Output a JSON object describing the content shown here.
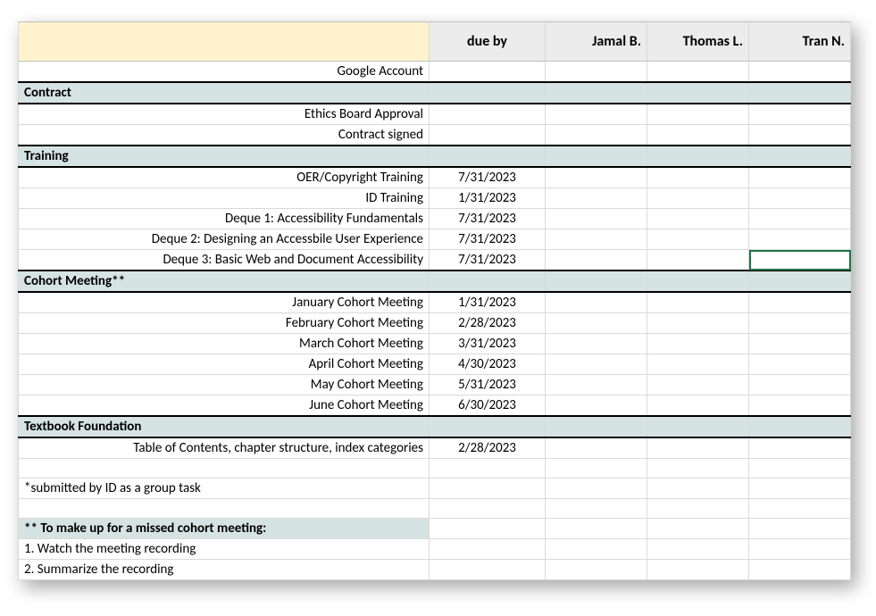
{
  "header": {
    "task_label": "",
    "due_label": "due by",
    "people": [
      "Jamal B.",
      "Thomas L.",
      "Tran N."
    ]
  },
  "pre_rows": [
    {
      "task": "Google Account",
      "due": ""
    }
  ],
  "sections": [
    {
      "title": "Contract",
      "rows": [
        {
          "task": "Ethics Board Approval",
          "due": ""
        },
        {
          "task": "Contract signed",
          "due": ""
        }
      ]
    },
    {
      "title": "Training",
      "rows": [
        {
          "task": "OER/Copyright Training",
          "due": "7/31/2023"
        },
        {
          "task": "ID Training",
          "due": "1/31/2023"
        },
        {
          "task": "Deque 1: Accessibility Fundamentals",
          "due": "7/31/2023"
        },
        {
          "task": "Deque 2: Designing an Accessbile User Experience",
          "due": "7/31/2023"
        },
        {
          "task": "Deque 3:  Basic Web and Document Accessibility",
          "due": "7/31/2023",
          "active": true
        }
      ]
    },
    {
      "title": "Cohort Meeting**",
      "rows": [
        {
          "task": "January Cohort Meeting",
          "due": "1/31/2023"
        },
        {
          "task": "February Cohort Meeting",
          "due": "2/28/2023"
        },
        {
          "task": "March Cohort Meeting",
          "due": "3/31/2023"
        },
        {
          "task": "April Cohort Meeting",
          "due": "4/30/2023"
        },
        {
          "task": "May Cohort Meeting",
          "due": "5/31/2023"
        },
        {
          "task": "June Cohort Meeting",
          "due": "6/30/2023"
        }
      ]
    },
    {
      "title": "Textbook Foundation",
      "rows": [
        {
          "task": "Table of Contents, chapter structure, index categories",
          "due": "2/28/2023"
        }
      ]
    }
  ],
  "notes": {
    "blank_before": true,
    "line1": "*submitted by ID as a group task",
    "blank_mid": true,
    "header": "** To make up for a missed cohort meeting:",
    "steps": [
      "1. Watch the meeting recording",
      "2. Summarize the recording"
    ]
  },
  "colors": {
    "header_bg": "#ececec",
    "task_head_bg": "#fff2cc",
    "section_bg": "#d6e3e3",
    "grid": "#d9d9d9",
    "section_border": "#000000",
    "active_outline": "#217346"
  }
}
